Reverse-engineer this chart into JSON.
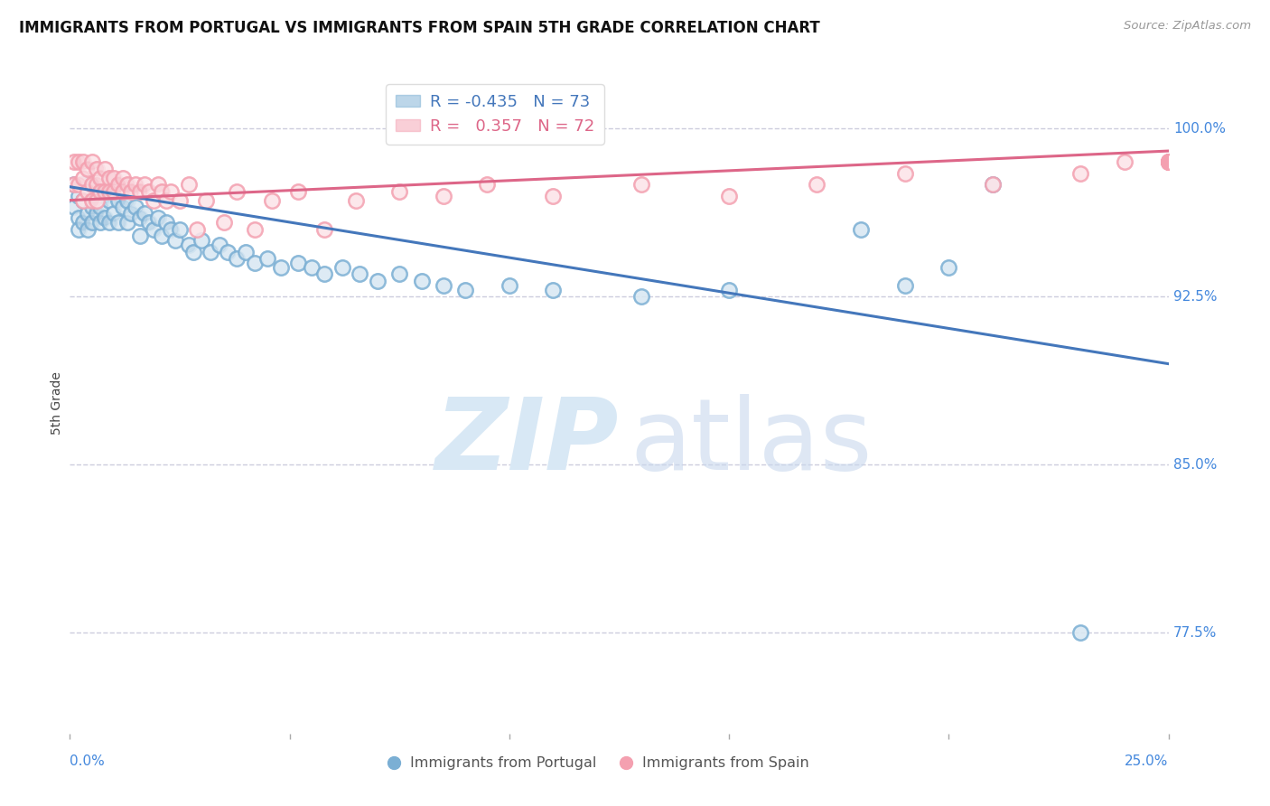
{
  "title": "IMMIGRANTS FROM PORTUGAL VS IMMIGRANTS FROM SPAIN 5TH GRADE CORRELATION CHART",
  "source": "Source: ZipAtlas.com",
  "ylabel": "5th Grade",
  "ytick_labels": [
    "100.0%",
    "92.5%",
    "85.0%",
    "77.5%"
  ],
  "ytick_values": [
    1.0,
    0.925,
    0.85,
    0.775
  ],
  "xmin": 0.0,
  "xmax": 0.25,
  "ymin": 0.73,
  "ymax": 1.025,
  "legend_blue_r": "-0.435",
  "legend_blue_n": "73",
  "legend_pink_r": "0.357",
  "legend_pink_n": "72",
  "blue_color": "#7BAFD4",
  "pink_color": "#F4A0B0",
  "blue_line_color": "#4477BB",
  "pink_line_color": "#DD6688",
  "grid_color": "#CCCCDD",
  "axis_label_color": "#4488DD",
  "blue_scatter_x": [
    0.001,
    0.001,
    0.002,
    0.002,
    0.002,
    0.003,
    0.003,
    0.003,
    0.004,
    0.004,
    0.004,
    0.005,
    0.005,
    0.005,
    0.006,
    0.006,
    0.007,
    0.007,
    0.007,
    0.008,
    0.008,
    0.009,
    0.009,
    0.01,
    0.01,
    0.011,
    0.011,
    0.012,
    0.013,
    0.013,
    0.014,
    0.015,
    0.016,
    0.016,
    0.017,
    0.018,
    0.019,
    0.02,
    0.021,
    0.022,
    0.023,
    0.024,
    0.025,
    0.027,
    0.028,
    0.03,
    0.032,
    0.034,
    0.036,
    0.038,
    0.04,
    0.042,
    0.045,
    0.048,
    0.052,
    0.055,
    0.058,
    0.062,
    0.066,
    0.07,
    0.075,
    0.08,
    0.085,
    0.09,
    0.1,
    0.11,
    0.13,
    0.15,
    0.18,
    0.19,
    0.2,
    0.21,
    0.23
  ],
  "blue_scatter_y": [
    0.975,
    0.965,
    0.97,
    0.96,
    0.955,
    0.975,
    0.968,
    0.958,
    0.972,
    0.962,
    0.955,
    0.975,
    0.965,
    0.958,
    0.97,
    0.962,
    0.972,
    0.965,
    0.958,
    0.97,
    0.96,
    0.968,
    0.958,
    0.972,
    0.962,
    0.968,
    0.958,
    0.965,
    0.968,
    0.958,
    0.962,
    0.965,
    0.96,
    0.952,
    0.962,
    0.958,
    0.955,
    0.96,
    0.952,
    0.958,
    0.955,
    0.95,
    0.955,
    0.948,
    0.945,
    0.95,
    0.945,
    0.948,
    0.945,
    0.942,
    0.945,
    0.94,
    0.942,
    0.938,
    0.94,
    0.938,
    0.935,
    0.938,
    0.935,
    0.932,
    0.935,
    0.932,
    0.93,
    0.928,
    0.93,
    0.928,
    0.925,
    0.928,
    0.955,
    0.93,
    0.938,
    0.975,
    0.775
  ],
  "pink_scatter_x": [
    0.001,
    0.001,
    0.002,
    0.002,
    0.003,
    0.003,
    0.003,
    0.004,
    0.004,
    0.005,
    0.005,
    0.005,
    0.006,
    0.006,
    0.006,
    0.007,
    0.007,
    0.008,
    0.008,
    0.009,
    0.009,
    0.01,
    0.01,
    0.011,
    0.012,
    0.012,
    0.013,
    0.014,
    0.015,
    0.016,
    0.017,
    0.018,
    0.019,
    0.02,
    0.021,
    0.022,
    0.023,
    0.025,
    0.027,
    0.029,
    0.031,
    0.035,
    0.038,
    0.042,
    0.046,
    0.052,
    0.058,
    0.065,
    0.075,
    0.085,
    0.095,
    0.11,
    0.13,
    0.15,
    0.17,
    0.19,
    0.21,
    0.23,
    0.24,
    0.25,
    0.25,
    0.25,
    0.25,
    0.25,
    0.25,
    0.25,
    0.25,
    0.25,
    0.25,
    0.25,
    0.25,
    0.25
  ],
  "pink_scatter_y": [
    0.985,
    0.975,
    0.985,
    0.975,
    0.985,
    0.978,
    0.968,
    0.982,
    0.972,
    0.985,
    0.975,
    0.968,
    0.982,
    0.975,
    0.968,
    0.978,
    0.972,
    0.982,
    0.972,
    0.978,
    0.972,
    0.978,
    0.972,
    0.975,
    0.978,
    0.972,
    0.975,
    0.972,
    0.975,
    0.972,
    0.975,
    0.972,
    0.968,
    0.975,
    0.972,
    0.968,
    0.972,
    0.968,
    0.975,
    0.955,
    0.968,
    0.958,
    0.972,
    0.955,
    0.968,
    0.972,
    0.955,
    0.968,
    0.972,
    0.97,
    0.975,
    0.97,
    0.975,
    0.97,
    0.975,
    0.98,
    0.975,
    0.98,
    0.985,
    0.985,
    0.985,
    0.985,
    0.985,
    0.985,
    0.985,
    0.985,
    0.985,
    0.985,
    0.985,
    0.985,
    0.985,
    0.985
  ],
  "blue_trendline_x": [
    0.0,
    0.25
  ],
  "blue_trendline_y": [
    0.974,
    0.895
  ],
  "pink_trendline_x": [
    0.0,
    0.25
  ],
  "pink_trendline_y": [
    0.968,
    0.99
  ]
}
